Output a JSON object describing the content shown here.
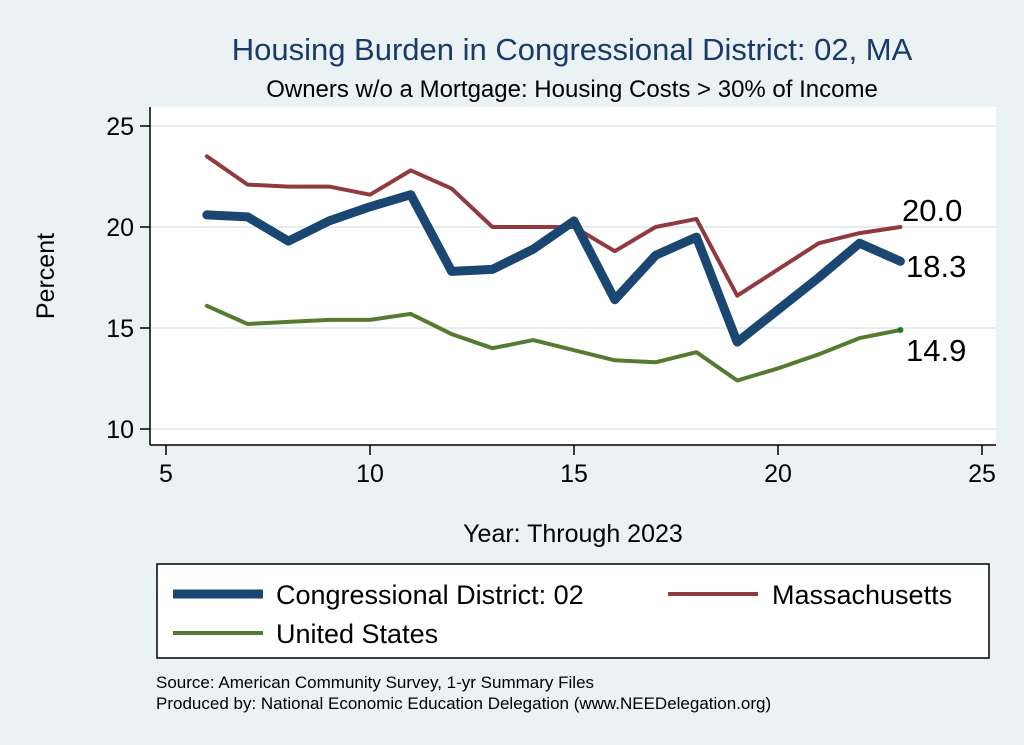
{
  "chart_data": {
    "type": "line",
    "title": "Housing Burden in Congressional District:  02, MA",
    "subtitle": "Owners w/o a Mortgage: Housing Costs > 30% of Income",
    "xlabel": "Year: Through 2023",
    "ylabel": "Percent",
    "xlim": [
      5,
      25
    ],
    "ylim": [
      10,
      25
    ],
    "xticks": [
      5,
      10,
      15,
      20,
      25
    ],
    "yticks": [
      10,
      15,
      20,
      25
    ],
    "x": [
      6,
      7,
      8,
      9,
      10,
      11,
      12,
      13,
      14,
      15,
      16,
      17,
      18,
      19,
      20,
      21,
      22,
      23
    ],
    "series": [
      {
        "name": "Congressional District:  02",
        "color": "#1a4672",
        "values": [
          20.6,
          20.5,
          19.3,
          20.3,
          21.0,
          21.6,
          17.8,
          17.9,
          18.9,
          20.3,
          16.4,
          18.6,
          19.5,
          14.3,
          15.9,
          17.5,
          19.2,
          18.3
        ],
        "end_label": "18.3"
      },
      {
        "name": "Massachusetts",
        "color": "#903a3f",
        "values": [
          23.5,
          22.1,
          22.0,
          22.0,
          21.6,
          22.8,
          21.9,
          20.0,
          20.0,
          20.0,
          18.8,
          20.0,
          20.4,
          16.6,
          17.9,
          19.2,
          19.7,
          20.0
        ],
        "end_label": "20.0"
      },
      {
        "name": "United States",
        "color": "#577a31",
        "values": [
          16.1,
          15.2,
          15.3,
          15.4,
          15.4,
          15.7,
          14.7,
          14.0,
          14.4,
          13.9,
          13.4,
          13.3,
          13.8,
          12.4,
          13.0,
          13.7,
          14.5,
          14.9
        ],
        "end_label": "14.9"
      }
    ],
    "legend": {
      "placement": "bottom",
      "entries": [
        "Congressional District:  02",
        "Massachusetts",
        "United States"
      ]
    },
    "notes": {
      "source": "Source: American Community Survey, 1-yr Summary Files",
      "produced": "Produced by: National Economic Education Delegation (www.NEEDelegation.org)"
    },
    "colors": {
      "background": "#eaf2f3",
      "plot_background": "#ffffff",
      "title": "#1a3a6a",
      "end_marker": "#1f7a1f"
    }
  }
}
